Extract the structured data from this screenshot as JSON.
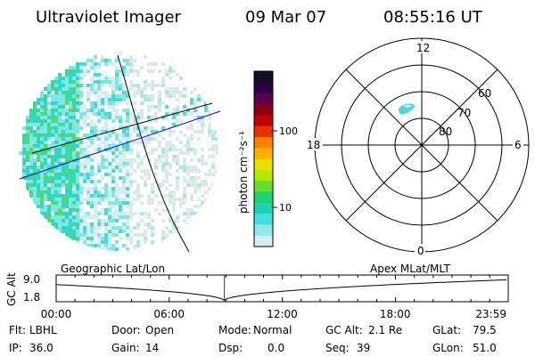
{
  "header": {
    "title": "Ultraviolet Imager",
    "date": "09 Mar 07",
    "time": "08:55:16 UT"
  },
  "colorbar": {
    "label": "photon cm⁻²s⁻¹",
    "ticks": [
      "100",
      "10"
    ],
    "colors": [
      "#101020",
      "#300040",
      "#5a0050",
      "#8a0010",
      "#c00000",
      "#e83000",
      "#ff8000",
      "#ffb000",
      "#e8e000",
      "#b0e800",
      "#60e030",
      "#20d070",
      "#20d0b0",
      "#40e0e0",
      "#90e8e8",
      "#d8eeee"
    ]
  },
  "polar_grid": {
    "mlt_labels": {
      "top": "12",
      "bottom": "0",
      "left": "18",
      "right": "6"
    },
    "lat_labels": [
      "60",
      "70",
      "80"
    ]
  },
  "timeline": {
    "ylabel": "GC Alt",
    "ytick_top": "9.0",
    "ytick_bottom": "1.8",
    "left_title": "Geographic Lat/Lon",
    "right_title": "Apex  MLat/MLT",
    "xticks": [
      "00:00",
      "06:00",
      "12:00",
      "18:00",
      "23:59"
    ],
    "marker_time_hours": 8.92,
    "colors": {
      "marker": "#cc0000",
      "curve": "#000000"
    }
  },
  "status": {
    "flt_label": "Flt:",
    "flt_value": "LBHL",
    "door_label": "Door:",
    "door_value": "Open",
    "mode_label": "Mode:",
    "mode_value": "Normal",
    "gcalt_label": "GC Alt:",
    "gcalt_value": "2.1 Re",
    "glat_label": "GLat:",
    "glat_value": "79.5",
    "ip_label": "IP:",
    "ip_value": "36.0",
    "gain_label": "Gain:",
    "gain_value": "14",
    "dsp_label": "Dsp:",
    "dsp_value": "0.0",
    "seq_label": "Seq:",
    "seq_value": "39",
    "glon_label": "GLon:",
    "glon_value": "51.0"
  }
}
